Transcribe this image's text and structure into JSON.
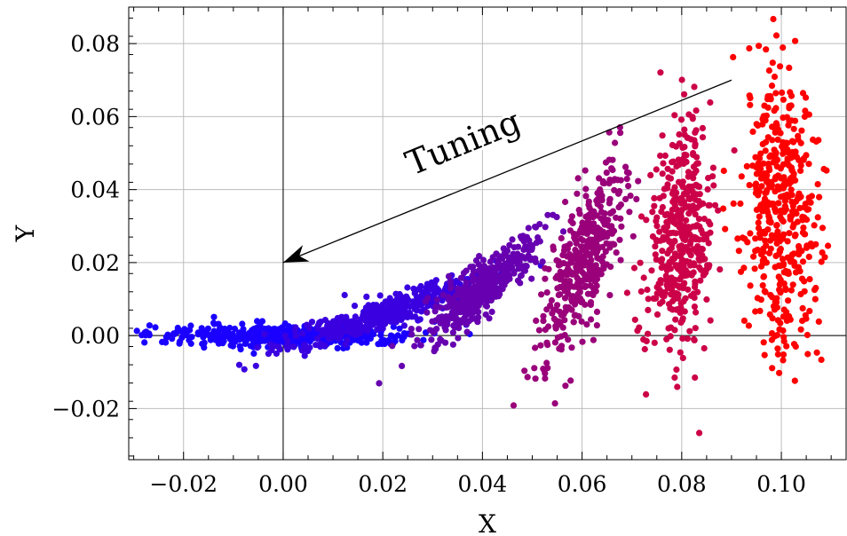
{
  "chart_data": {
    "type": "scatter",
    "title": "",
    "xlabel": "X",
    "ylabel": "Y",
    "xlim": [
      -0.031,
      0.113
    ],
    "ylim": [
      -0.034,
      0.09
    ],
    "grid": true,
    "x_ticks": [
      -0.02,
      0.0,
      0.02,
      0.04,
      0.06,
      0.08,
      0.1
    ],
    "x_tick_labels": [
      "−0.02",
      "0.00",
      "0.02",
      "0.04",
      "0.06",
      "0.08",
      "0.10"
    ],
    "y_ticks": [
      -0.02,
      0.0,
      0.02,
      0.04,
      0.06,
      0.08
    ],
    "y_tick_labels": [
      "−0.02",
      "0.00",
      "0.02",
      "0.04",
      "0.06",
      "0.08"
    ],
    "series": [
      {
        "color": "#1a00ff",
        "center": [
          0.0,
          0.0
        ],
        "spread_major": 0.0135,
        "spread_minor": 0.0011,
        "angle_deg": 0,
        "count": 420
      },
      {
        "color": "#3a00e0",
        "center": [
          0.02,
          0.006
        ],
        "spread_major": 0.0105,
        "spread_minor": 0.0015,
        "angle_deg": -19,
        "count": 420
      },
      {
        "color": "#6600b0",
        "center": [
          0.04,
          0.013
        ],
        "spread_major": 0.0075,
        "spread_minor": 0.002,
        "angle_deg": -42,
        "count": 420
      },
      {
        "color": "#99007a",
        "center": [
          0.06,
          0.02
        ],
        "spread_major": 0.0095,
        "spread_minor": 0.0028,
        "angle_deg": -72,
        "count": 420
      },
      {
        "color": "#cc0048",
        "center": [
          0.08,
          0.027
        ],
        "spread_major": 0.0115,
        "spread_minor": 0.0033,
        "angle_deg": -85,
        "count": 420
      },
      {
        "color": "#ff0000",
        "center": [
          0.1,
          0.033
        ],
        "spread_major": 0.014,
        "spread_minor": 0.0038,
        "angle_deg": -90,
        "count": 460
      }
    ],
    "annotations": [
      {
        "type": "arrow",
        "from": [
          0.09,
          0.07
        ],
        "to": [
          0.0,
          0.02
        ],
        "label": "Tuning",
        "label_position": [
          0.037,
          0.05
        ]
      }
    ]
  }
}
